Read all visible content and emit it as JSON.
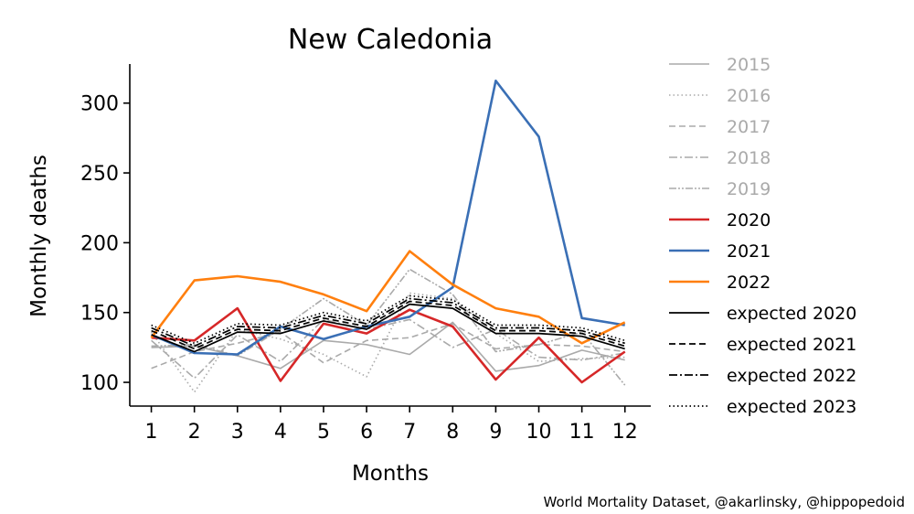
{
  "chart_data": {
    "type": "line",
    "title": "New Caledonia",
    "xlabel": "Months",
    "ylabel": "Monthly deaths",
    "x": [
      1,
      2,
      3,
      4,
      5,
      6,
      7,
      8,
      9,
      10,
      11,
      12
    ],
    "x_ticks": [
      "1",
      "2",
      "3",
      "4",
      "5",
      "6",
      "7",
      "8",
      "9",
      "10",
      "11",
      "12"
    ],
    "y_ticks": [
      "100",
      "150",
      "200",
      "250",
      "300"
    ],
    "ylim": [
      83,
      328
    ],
    "xlim": [
      0.5,
      12.6
    ],
    "grid": false,
    "legend_position": "right, outside",
    "series": [
      {
        "name": "2015",
        "color": "#aaaaaa",
        "dash": "solid",
        "width": 1.6,
        "values": [
          125,
          126,
          119,
          110,
          130,
          127,
          120,
          143,
          108,
          112,
          123,
          116
        ]
      },
      {
        "name": "2016",
        "color": "#aaaaaa",
        "dash": "dotted",
        "width": 1.6,
        "values": [
          136,
          93,
          138,
          131,
          120,
          104,
          164,
          160,
          135,
          115,
          117,
          118
        ]
      },
      {
        "name": "2017",
        "color": "#aaaaaa",
        "dash": "dashed",
        "width": 1.6,
        "values": [
          110,
          122,
          128,
          136,
          114,
          130,
          132,
          142,
          124,
          127,
          126,
          122
        ]
      },
      {
        "name": "2018",
        "color": "#aaaaaa",
        "dash": "dashdot",
        "width": 1.6,
        "values": [
          130,
          103,
          134,
          115,
          145,
          138,
          145,
          125,
          138,
          118,
          116,
          121
        ]
      },
      {
        "name": "2019",
        "color": "#aaaaaa",
        "dash": "dashdotdot",
        "width": 1.6,
        "values": [
          126,
          127,
          119,
          138,
          160,
          141,
          181,
          163,
          122,
          127,
          136,
          98
        ]
      },
      {
        "name": "2020",
        "color": "#d62728",
        "dash": "solid",
        "width": 2.6,
        "values": [
          132,
          130,
          153,
          101,
          142,
          135,
          152,
          140,
          102,
          132,
          100,
          122
        ]
      },
      {
        "name": "2021",
        "color": "#3a6fb5",
        "dash": "solid",
        "width": 2.6,
        "values": [
          134,
          121,
          120,
          140,
          131,
          140,
          147,
          168,
          316,
          276,
          146,
          141
        ]
      },
      {
        "name": "2022",
        "color": "#ff7f0e",
        "dash": "solid",
        "width": 2.6,
        "values": [
          132,
          173,
          176,
          172,
          163,
          151,
          194,
          170,
          153,
          147,
          128,
          143
        ]
      },
      {
        "name": "expected 2020",
        "color": "#000000",
        "dash": "solid",
        "width": 1.7,
        "values": [
          134,
          122,
          136,
          135,
          144,
          138,
          156,
          153,
          135,
          135,
          133,
          124
        ]
      },
      {
        "name": "expected 2021",
        "color": "#000000",
        "dash": "dashed",
        "width": 1.7,
        "values": [
          137,
          124,
          138,
          137,
          146,
          140,
          158,
          155,
          137,
          137,
          135,
          126
        ]
      },
      {
        "name": "expected 2022",
        "color": "#000000",
        "dash": "dashdot",
        "width": 1.7,
        "values": [
          139,
          126,
          140,
          139,
          148,
          142,
          160,
          157,
          139,
          139,
          137,
          128
        ]
      },
      {
        "name": "expected 2023",
        "color": "#000000",
        "dash": "dotted",
        "width": 1.7,
        "values": [
          141,
          128,
          142,
          141,
          150,
          144,
          162,
          159,
          141,
          141,
          139,
          130
        ]
      }
    ]
  },
  "credit": "World Mortality Dataset, @akarlinsky, @hippopedoid"
}
